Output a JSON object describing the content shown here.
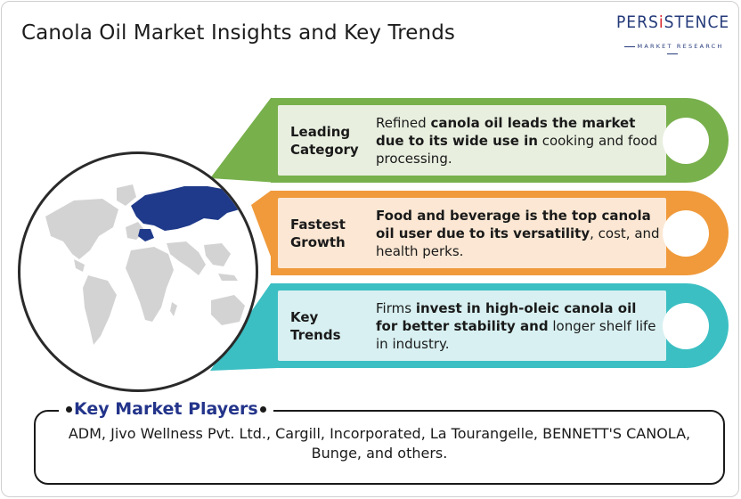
{
  "title": "Canola Oil Market Insights and Key Trends",
  "logo": {
    "word_prefix": "PERS",
    "word_i": "i",
    "word_suffix": "STENCE",
    "sub": "MARKET RESEARCH"
  },
  "insights": [
    {
      "label": "Leading Category",
      "label_line1": "Leading",
      "label_line2": "Category",
      "desc_parts": [
        {
          "text": "Refined ",
          "bold": false
        },
        {
          "text": "canola oil leads the market due to its wide use in",
          "bold": true
        },
        {
          "text": " cooking and food processing.",
          "bold": false
        }
      ],
      "color": "#78b04c"
    },
    {
      "label": "Fastest Growth",
      "label_line1": "Fastest",
      "label_line2": "Growth",
      "desc_parts": [
        {
          "text": "Food and beverage is the top canola oil user due to its versatility",
          "bold": true
        },
        {
          "text": ", cost, and health perks.",
          "bold": false
        }
      ],
      "color": "#f09a3b"
    },
    {
      "label": "Key Trends",
      "label_line1": "Key",
      "label_line2": "Trends",
      "desc_parts": [
        {
          "text": "Firms ",
          "bold": false
        },
        {
          "text": "invest in high-oleic canola oil for better stability and",
          "bold": true
        },
        {
          "text": " longer shelf life in industry.",
          "bold": false
        }
      ],
      "color": "#3bbfc3"
    }
  ],
  "players": {
    "title": "Key Market Players",
    "text": "ADM, Jivo Wellness Pvt. Ltd., Cargill, Incorporated, La Tourangelle, BENNETT'S CANOLA, Bunge, and others."
  },
  "colors": {
    "title_blue": "#23348a",
    "highlight_region": "#1f3a8a",
    "land_gray": "#d3d3d3"
  }
}
